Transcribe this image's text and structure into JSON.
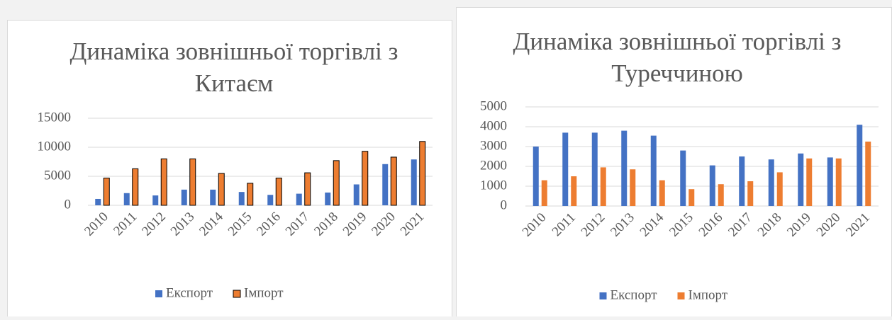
{
  "chart_data": [
    {
      "type": "bar",
      "title": "Динаміка зовнішньої торгівлі з Китаєм",
      "categories": [
        "2010",
        "2011",
        "2012",
        "2013",
        "2014",
        "2015",
        "2016",
        "2017",
        "2018",
        "2019",
        "2020",
        "2021"
      ],
      "series": [
        {
          "name": "Експорт",
          "color": "#4472c4",
          "values": [
            1100,
            2100,
            1700,
            2700,
            2700,
            2300,
            1800,
            2000,
            2200,
            3600,
            7100,
            7900
          ]
        },
        {
          "name": "Імпорт",
          "color": "#ed7d31",
          "edgecolor": "#000000",
          "values": [
            4700,
            6300,
            8000,
            8000,
            5500,
            3800,
            4700,
            5600,
            7700,
            9300,
            8300,
            11000
          ]
        }
      ],
      "ylim": [
        0,
        15000
      ],
      "yticks": [
        0,
        5000,
        10000,
        15000
      ],
      "grid": true,
      "legend": "bottom"
    },
    {
      "type": "bar",
      "title": "Динаміка зовнішньої торгівлі з Туреччиною",
      "categories": [
        "2010",
        "2011",
        "2012",
        "2013",
        "2014",
        "2015",
        "2016",
        "2017",
        "2018",
        "2019",
        "2020",
        "2021"
      ],
      "series": [
        {
          "name": "Експорт",
          "color": "#4472c4",
          "values": [
            3000,
            3700,
            3700,
            3800,
            3550,
            2800,
            2050,
            2500,
            2350,
            2650,
            2450,
            4100
          ]
        },
        {
          "name": "Імпорт",
          "color": "#ed7d31",
          "values": [
            1300,
            1500,
            1950,
            1850,
            1300,
            850,
            1100,
            1250,
            1700,
            2400,
            2400,
            3250
          ]
        }
      ],
      "ylim": [
        0,
        5000
      ],
      "yticks": [
        0,
        1000,
        2000,
        3000,
        4000,
        5000
      ],
      "grid": true,
      "legend": "bottom"
    }
  ]
}
